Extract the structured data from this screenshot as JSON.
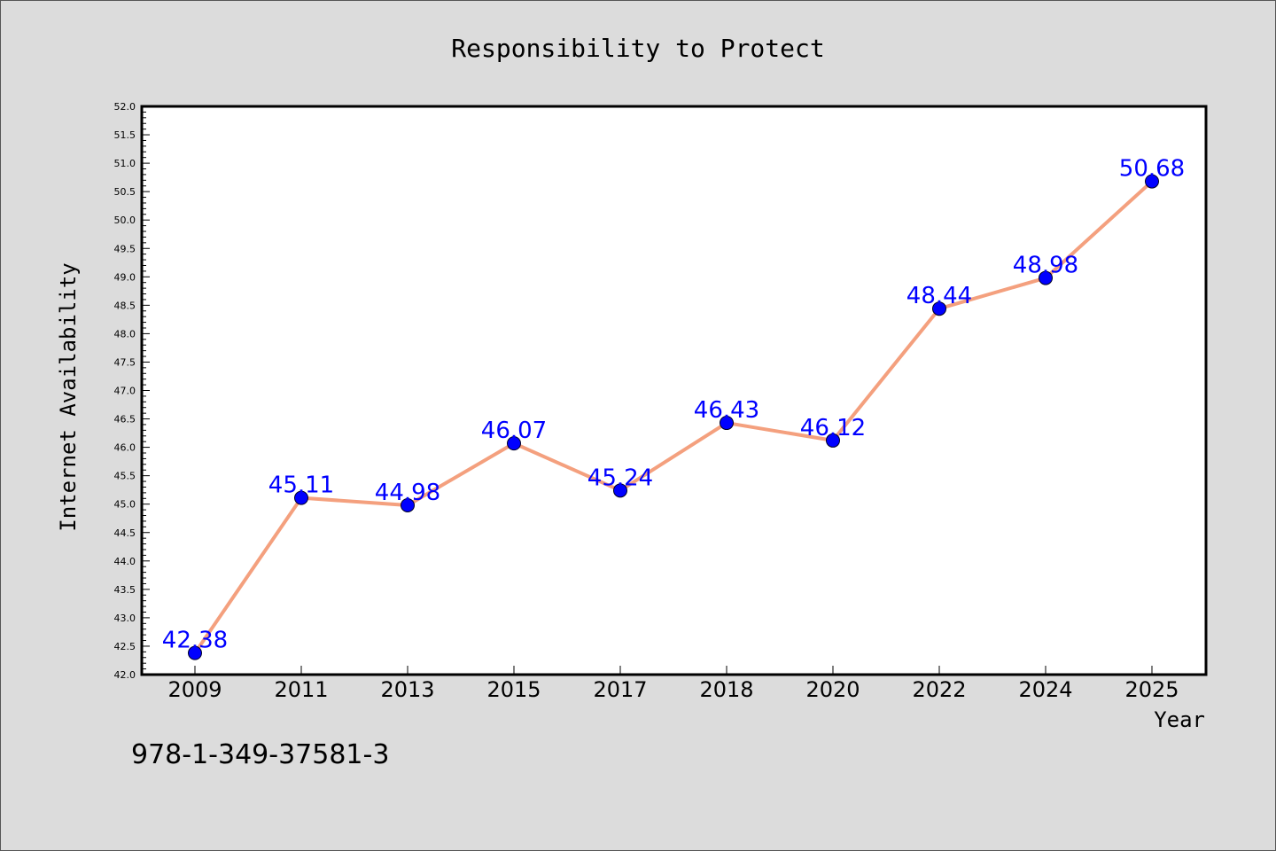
{
  "chart_data": {
    "type": "line",
    "title": "Responsibility to Protect",
    "xlabel": "Year",
    "ylabel": "Internet Availability",
    "categories": [
      "2009",
      "2011",
      "2013",
      "2015",
      "2017",
      "2018",
      "2020",
      "2022",
      "2024",
      "2025"
    ],
    "series": [
      {
        "values": [
          42.38,
          45.11,
          44.98,
          46.07,
          45.24,
          46.43,
          46.12,
          48.44,
          48.98,
          50.68
        ],
        "labels": [
          "42.38",
          "45.11",
          "44.98",
          "46.07",
          "45.24",
          "46.43",
          "46.12",
          "48.44",
          "48.98",
          "50.68"
        ],
        "line_color": "#f4a07e",
        "marker_color": "#0000ff"
      }
    ],
    "ylim": [
      42.0,
      52.0
    ],
    "yticks": [
      "42.0",
      "42.5",
      "43.0",
      "43.5",
      "44.0",
      "44.5",
      "45.0",
      "45.5",
      "46.0",
      "46.5",
      "47.0",
      "47.5",
      "48.0",
      "48.5",
      "49.0",
      "49.5",
      "50.0",
      "50.5",
      "51.0",
      "51.5",
      "52.0"
    ],
    "grid": false,
    "legend": "none"
  },
  "footer": {
    "isbn": "978-1-349-37581-3"
  },
  "colors": {
    "background": "#dcdcdc",
    "plot_background": "#ffffff",
    "label_color": "#0000ff"
  }
}
